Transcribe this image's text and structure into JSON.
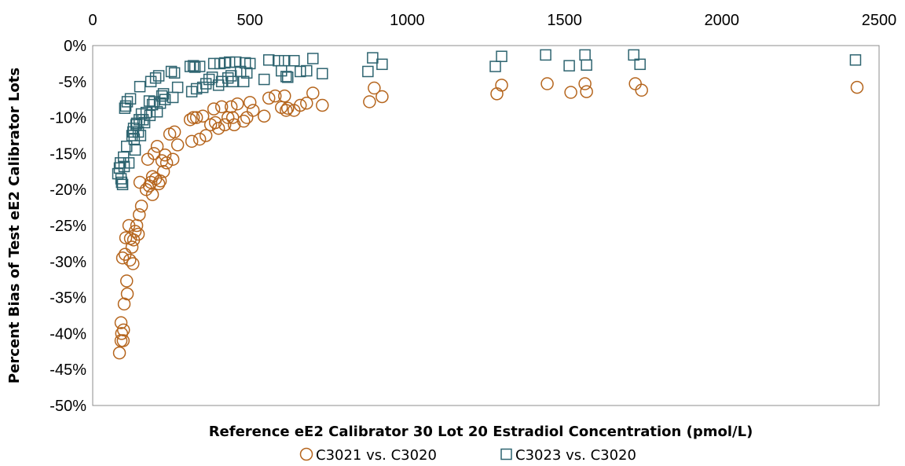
{
  "chart_data": {
    "type": "scatter",
    "title": "",
    "xlabel": "Reference eE2 Calibrator 30 Lot 20 Estradiol Concentration (pmol/L)",
    "ylabel": "Percent Bias of Test eE2 Calibrator Lots",
    "xlim": [
      0,
      2500
    ],
    "ylim": [
      -50,
      0
    ],
    "x_ticks": [
      "0",
      "500",
      "1000",
      "1500",
      "2000",
      "2500"
    ],
    "y_ticks": [
      "0%",
      "-5%",
      "-10%",
      "-15%",
      "-20%",
      "-25%",
      "-30%",
      "-35%",
      "-40%",
      "-45%",
      "-50%"
    ],
    "x_axis_position": "top",
    "grid": false,
    "legend_position": "bottom",
    "series": [
      {
        "name": "C3021 vs. C3020",
        "marker": "circle",
        "color": "#b5651d",
        "points": [
          [
            85,
            -42.7
          ],
          [
            90,
            -41
          ],
          [
            90,
            -38.5
          ],
          [
            92,
            -40
          ],
          [
            95,
            -29.5
          ],
          [
            97,
            -41
          ],
          [
            98,
            -39.5
          ],
          [
            100,
            -35.9
          ],
          [
            103,
            -29
          ],
          [
            105,
            -26.7
          ],
          [
            108,
            -32.7
          ],
          [
            110,
            -34.5
          ],
          [
            115,
            -25
          ],
          [
            118,
            -29.8
          ],
          [
            120,
            -26.8
          ],
          [
            125,
            -28
          ],
          [
            128,
            -30.3
          ],
          [
            130,
            -27
          ],
          [
            135,
            -25.8
          ],
          [
            140,
            -25
          ],
          [
            145,
            -26.2
          ],
          [
            148,
            -23.5
          ],
          [
            150,
            -19
          ],
          [
            155,
            -22.3
          ],
          [
            170,
            -20
          ],
          [
            175,
            -15.8
          ],
          [
            180,
            -19.5
          ],
          [
            185,
            -19
          ],
          [
            190,
            -20.7
          ],
          [
            190,
            -18.2
          ],
          [
            195,
            -15
          ],
          [
            200,
            -18.5
          ],
          [
            205,
            -14
          ],
          [
            210,
            -19.2
          ],
          [
            215,
            -18.8
          ],
          [
            220,
            -16
          ],
          [
            225,
            -17.5
          ],
          [
            230,
            -15.2
          ],
          [
            235,
            -16.3
          ],
          [
            245,
            -12.3
          ],
          [
            255,
            -15.8
          ],
          [
            260,
            -12
          ],
          [
            270,
            -13.8
          ],
          [
            310,
            -10.3
          ],
          [
            315,
            -13.3
          ],
          [
            320,
            -10
          ],
          [
            330,
            -10
          ],
          [
            340,
            -13
          ],
          [
            350,
            -9.8
          ],
          [
            360,
            -12.5
          ],
          [
            375,
            -11
          ],
          [
            385,
            -8.8
          ],
          [
            390,
            -10.7
          ],
          [
            400,
            -11.5
          ],
          [
            410,
            -8.5
          ],
          [
            420,
            -11
          ],
          [
            430,
            -10
          ],
          [
            440,
            -8.5
          ],
          [
            445,
            -10
          ],
          [
            450,
            -11
          ],
          [
            460,
            -8.1
          ],
          [
            480,
            -10.5
          ],
          [
            490,
            -10
          ],
          [
            500,
            -7.9
          ],
          [
            510,
            -9
          ],
          [
            545,
            -9.8
          ],
          [
            560,
            -7.3
          ],
          [
            580,
            -7
          ],
          [
            600,
            -8.6
          ],
          [
            610,
            -7
          ],
          [
            615,
            -9
          ],
          [
            620,
            -8.7
          ],
          [
            640,
            -9
          ],
          [
            660,
            -8.3
          ],
          [
            680,
            -8
          ],
          [
            700,
            -6.6
          ],
          [
            730,
            -8.3
          ],
          [
            880,
            -7.8
          ],
          [
            895,
            -5.9
          ],
          [
            920,
            -7.1
          ],
          [
            1285,
            -6.7
          ],
          [
            1300,
            -5.5
          ],
          [
            1445,
            -5.3
          ],
          [
            1520,
            -6.5
          ],
          [
            1565,
            -5.3
          ],
          [
            1570,
            -6.4
          ],
          [
            1725,
            -5.3
          ],
          [
            1745,
            -6.2
          ],
          [
            2430,
            -5.8
          ]
        ]
      },
      {
        "name": "C3023 vs. C3020",
        "marker": "square",
        "color": "#2e6470",
        "points": [
          [
            80,
            -17.8
          ],
          [
            85,
            -17
          ],
          [
            88,
            -16.3
          ],
          [
            90,
            -18.5
          ],
          [
            92,
            -19
          ],
          [
            95,
            -19.3
          ],
          [
            98,
            -15.5
          ],
          [
            100,
            -16.8
          ],
          [
            102,
            -8.7
          ],
          [
            105,
            -8.4
          ],
          [
            108,
            -14
          ],
          [
            110,
            -7.8
          ],
          [
            115,
            -16.3
          ],
          [
            120,
            -7.4
          ],
          [
            125,
            -12.5
          ],
          [
            128,
            -12
          ],
          [
            130,
            -11.5
          ],
          [
            132,
            -13
          ],
          [
            135,
            -14.5
          ],
          [
            138,
            -11
          ],
          [
            140,
            -10.8
          ],
          [
            145,
            -12
          ],
          [
            148,
            -10.3
          ],
          [
            150,
            -5.7
          ],
          [
            152,
            -12.5
          ],
          [
            155,
            -9.5
          ],
          [
            160,
            -10.3
          ],
          [
            165,
            -10.7
          ],
          [
            170,
            -9.3
          ],
          [
            180,
            -7.7
          ],
          [
            182,
            -9.7
          ],
          [
            185,
            -5
          ],
          [
            190,
            -8.2
          ],
          [
            195,
            -7.8
          ],
          [
            200,
            -4.5
          ],
          [
            205,
            -9.2
          ],
          [
            210,
            -4.2
          ],
          [
            215,
            -8
          ],
          [
            220,
            -7
          ],
          [
            225,
            -6.7
          ],
          [
            230,
            -7.5
          ],
          [
            250,
            -3.6
          ],
          [
            255,
            -7.2
          ],
          [
            260,
            -3.8
          ],
          [
            270,
            -5.8
          ],
          [
            310,
            -2.9
          ],
          [
            315,
            -6.4
          ],
          [
            320,
            -2.8
          ],
          [
            325,
            -3
          ],
          [
            330,
            -6
          ],
          [
            340,
            -2.9
          ],
          [
            350,
            -5.8
          ],
          [
            360,
            -5.3
          ],
          [
            370,
            -4.7
          ],
          [
            380,
            -4.4
          ],
          [
            385,
            -2.5
          ],
          [
            400,
            -5.5
          ],
          [
            405,
            -2.5
          ],
          [
            410,
            -5
          ],
          [
            420,
            -2.4
          ],
          [
            430,
            -4.5
          ],
          [
            435,
            -2.3
          ],
          [
            440,
            -4.2
          ],
          [
            445,
            -5
          ],
          [
            455,
            -2.3
          ],
          [
            470,
            -3.6
          ],
          [
            480,
            -5
          ],
          [
            485,
            -2.4
          ],
          [
            490,
            -3.8
          ],
          [
            500,
            -2.5
          ],
          [
            545,
            -4.7
          ],
          [
            560,
            -2
          ],
          [
            590,
            -2.1
          ],
          [
            600,
            -3.5
          ],
          [
            610,
            -2.1
          ],
          [
            615,
            -4.3
          ],
          [
            620,
            -4.4
          ],
          [
            640,
            -2.1
          ],
          [
            660,
            -3.6
          ],
          [
            680,
            -3.5
          ],
          [
            700,
            -1.8
          ],
          [
            730,
            -3.9
          ],
          [
            875,
            -3.6
          ],
          [
            890,
            -1.7
          ],
          [
            920,
            -2.6
          ],
          [
            1280,
            -2.9
          ],
          [
            1300,
            -1.5
          ],
          [
            1440,
            -1.3
          ],
          [
            1515,
            -2.8
          ],
          [
            1565,
            -1.3
          ],
          [
            1570,
            -2.7
          ],
          [
            1720,
            -1.3
          ],
          [
            1740,
            -2.6
          ],
          [
            2425,
            -2
          ]
        ]
      }
    ]
  }
}
